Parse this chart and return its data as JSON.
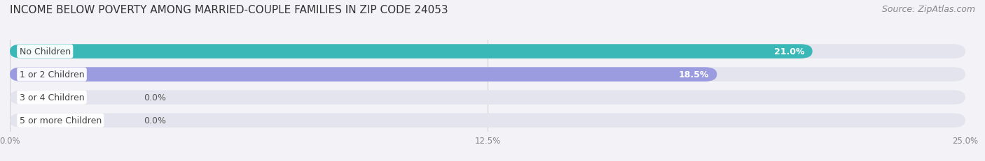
{
  "title": "INCOME BELOW POVERTY AMONG MARRIED-COUPLE FAMILIES IN ZIP CODE 24053",
  "source": "Source: ZipAtlas.com",
  "categories": [
    "No Children",
    "1 or 2 Children",
    "3 or 4 Children",
    "5 or more Children"
  ],
  "values": [
    21.0,
    18.5,
    0.0,
    0.0
  ],
  "bar_colors": [
    "#3ab8b8",
    "#9b9be0",
    "#f4aac0",
    "#f7d4a8"
  ],
  "xlim_max": 25.0,
  "xticks": [
    0.0,
    12.5,
    25.0
  ],
  "xticklabels": [
    "0.0%",
    "12.5%",
    "25.0%"
  ],
  "background_color": "#f2f2f7",
  "bar_bg_color": "#e4e4ee",
  "row_bg_color": "#ffffff",
  "title_fontsize": 11,
  "source_fontsize": 9,
  "label_fontsize": 9,
  "value_fontsize": 9,
  "bar_height": 0.62
}
